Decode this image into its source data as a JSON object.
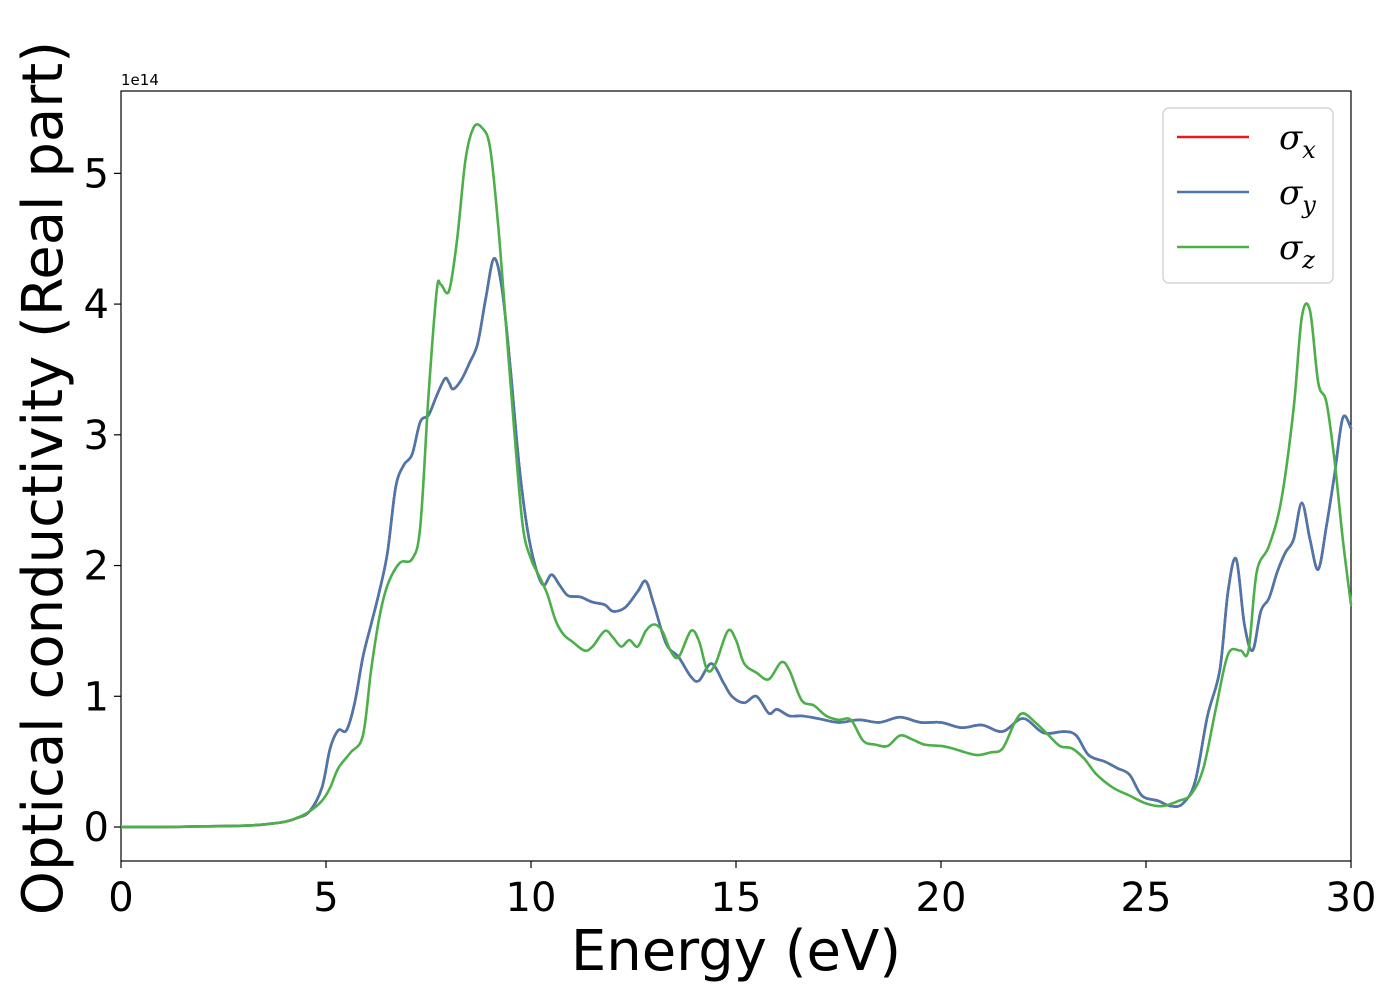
{
  "chart_data": {
    "type": "line",
    "xlabel": "Energy (eV)",
    "ylabel": "Optical conductivity (Real part)",
    "y_offset_label": "1e14",
    "xlim": [
      0,
      30
    ],
    "ylim": [
      -0.26,
      5.63
    ],
    "y_scale": 100000000000000.0,
    "grid": false,
    "legend_position": "top-right",
    "x_ticks": [
      0,
      5,
      10,
      15,
      20,
      25,
      30
    ],
    "x_tick_labels": [
      "0",
      "5",
      "10",
      "15",
      "20",
      "25",
      "30"
    ],
    "y_ticks": [
      0,
      1,
      2,
      3,
      4,
      5
    ],
    "y_tick_labels": [
      "0",
      "1",
      "2",
      "3",
      "4",
      "5"
    ],
    "series": [
      {
        "name": "σx",
        "name_base": "σ",
        "name_sub": "x",
        "color": "#e41a1c",
        "shared_with": "σy",
        "x": [
          0,
          1,
          2,
          3,
          3.5,
          4,
          4.3,
          4.6,
          4.9,
          5.1,
          5.3,
          5.5,
          5.7,
          5.9,
          6.1,
          6.3,
          6.5,
          6.7,
          6.9,
          7.1,
          7.3,
          7.5,
          7.7,
          7.9,
          8.0,
          8.1,
          8.3,
          8.5,
          8.7,
          8.9,
          9.1,
          9.3,
          9.5,
          9.7,
          9.9,
          10.1,
          10.3,
          10.5,
          10.7,
          10.9,
          11.2,
          11.5,
          11.8,
          12.0,
          12.3,
          12.6,
          12.8,
          13.0,
          13.3,
          13.6,
          13.9,
          14.1,
          14.4,
          14.7,
          14.9,
          15.2,
          15.5,
          15.8,
          16.0,
          16.3,
          16.6,
          17.0,
          17.5,
          18.0,
          18.5,
          19.0,
          19.5,
          20.0,
          20.5,
          21.0,
          21.5,
          22.0,
          22.5,
          23.0,
          23.3,
          23.6,
          24.0,
          24.3,
          24.6,
          24.9,
          25.3,
          25.6,
          25.9,
          26.2,
          26.5,
          26.8,
          27.0,
          27.2,
          27.4,
          27.6,
          27.8,
          28.0,
          28.2,
          28.4,
          28.6,
          28.8,
          29.0,
          29.2,
          29.4,
          29.6,
          29.8,
          30.0
        ],
        "y": [
          0,
          0,
          0.005,
          0.01,
          0.02,
          0.04,
          0.07,
          0.12,
          0.3,
          0.6,
          0.74,
          0.74,
          0.95,
          1.3,
          1.55,
          1.8,
          2.1,
          2.6,
          2.77,
          2.85,
          3.1,
          3.15,
          3.3,
          3.43,
          3.4,
          3.35,
          3.42,
          3.55,
          3.7,
          4.05,
          4.35,
          4.1,
          3.5,
          2.8,
          2.3,
          2.0,
          1.85,
          1.93,
          1.85,
          1.77,
          1.76,
          1.72,
          1.7,
          1.65,
          1.68,
          1.8,
          1.88,
          1.7,
          1.4,
          1.3,
          1.15,
          1.12,
          1.25,
          1.1,
          1.0,
          0.95,
          1.0,
          0.87,
          0.9,
          0.85,
          0.85,
          0.83,
          0.8,
          0.82,
          0.8,
          0.84,
          0.8,
          0.8,
          0.76,
          0.78,
          0.73,
          0.83,
          0.72,
          0.73,
          0.7,
          0.55,
          0.5,
          0.45,
          0.4,
          0.24,
          0.2,
          0.16,
          0.18,
          0.35,
          0.85,
          1.2,
          1.8,
          2.05,
          1.55,
          1.35,
          1.65,
          1.75,
          1.95,
          2.1,
          2.2,
          2.48,
          2.2,
          1.97,
          2.3,
          2.7,
          3.13,
          3.05
        ]
      },
      {
        "name": "σy",
        "name_base": "σ",
        "name_sub": "y",
        "color": "#4a78ac",
        "x": [
          0,
          1,
          2,
          3,
          3.5,
          4,
          4.3,
          4.6,
          4.9,
          5.1,
          5.3,
          5.5,
          5.7,
          5.9,
          6.1,
          6.3,
          6.5,
          6.7,
          6.9,
          7.1,
          7.3,
          7.5,
          7.7,
          7.9,
          8.0,
          8.1,
          8.3,
          8.5,
          8.7,
          8.9,
          9.1,
          9.3,
          9.5,
          9.7,
          9.9,
          10.1,
          10.3,
          10.5,
          10.7,
          10.9,
          11.2,
          11.5,
          11.8,
          12.0,
          12.3,
          12.6,
          12.8,
          13.0,
          13.3,
          13.6,
          13.9,
          14.1,
          14.4,
          14.7,
          14.9,
          15.2,
          15.5,
          15.8,
          16.0,
          16.3,
          16.6,
          17.0,
          17.5,
          18.0,
          18.5,
          19.0,
          19.5,
          20.0,
          20.5,
          21.0,
          21.5,
          22.0,
          22.5,
          23.0,
          23.3,
          23.6,
          24.0,
          24.3,
          24.6,
          24.9,
          25.3,
          25.6,
          25.9,
          26.2,
          26.5,
          26.8,
          27.0,
          27.2,
          27.4,
          27.6,
          27.8,
          28.0,
          28.2,
          28.4,
          28.6,
          28.8,
          29.0,
          29.2,
          29.4,
          29.6,
          29.8,
          30.0
        ],
        "y": [
          0,
          0,
          0.005,
          0.01,
          0.02,
          0.04,
          0.07,
          0.12,
          0.3,
          0.6,
          0.74,
          0.74,
          0.95,
          1.3,
          1.55,
          1.8,
          2.1,
          2.6,
          2.77,
          2.85,
          3.1,
          3.15,
          3.3,
          3.43,
          3.4,
          3.35,
          3.42,
          3.55,
          3.7,
          4.05,
          4.35,
          4.1,
          3.5,
          2.8,
          2.3,
          2.0,
          1.85,
          1.93,
          1.85,
          1.77,
          1.76,
          1.72,
          1.7,
          1.65,
          1.68,
          1.8,
          1.88,
          1.7,
          1.4,
          1.3,
          1.15,
          1.12,
          1.25,
          1.1,
          1.0,
          0.95,
          1.0,
          0.87,
          0.9,
          0.85,
          0.85,
          0.83,
          0.8,
          0.82,
          0.8,
          0.84,
          0.8,
          0.8,
          0.76,
          0.78,
          0.73,
          0.83,
          0.72,
          0.73,
          0.7,
          0.55,
          0.5,
          0.45,
          0.4,
          0.24,
          0.2,
          0.16,
          0.18,
          0.35,
          0.85,
          1.2,
          1.8,
          2.05,
          1.55,
          1.35,
          1.65,
          1.75,
          1.95,
          2.1,
          2.2,
          2.48,
          2.2,
          1.97,
          2.3,
          2.7,
          3.13,
          3.05
        ]
      },
      {
        "name": "σz",
        "name_base": "σ",
        "name_sub": "z",
        "color": "#4daf4a",
        "x": [
          0,
          1,
          2,
          3,
          3.5,
          4,
          4.3,
          4.6,
          4.9,
          5.1,
          5.3,
          5.6,
          5.9,
          6.1,
          6.3,
          6.5,
          6.8,
          7.1,
          7.3,
          7.5,
          7.7,
          7.8,
          8.0,
          8.2,
          8.4,
          8.6,
          8.8,
          9.0,
          9.2,
          9.4,
          9.6,
          9.8,
          10.0,
          10.2,
          10.4,
          10.6,
          10.8,
          11.0,
          11.3,
          11.5,
          11.8,
          12.0,
          12.2,
          12.4,
          12.6,
          12.8,
          13.0,
          13.2,
          13.4,
          13.6,
          13.9,
          14.1,
          14.3,
          14.5,
          14.8,
          15.0,
          15.2,
          15.5,
          15.8,
          16.1,
          16.3,
          16.6,
          16.9,
          17.2,
          17.5,
          17.8,
          18.1,
          18.4,
          18.7,
          19.0,
          19.3,
          19.6,
          20.0,
          20.3,
          20.6,
          20.9,
          21.2,
          21.5,
          21.8,
          22.0,
          22.3,
          22.6,
          22.9,
          23.2,
          23.5,
          23.8,
          24.2,
          24.6,
          25.0,
          25.4,
          25.8,
          26.1,
          26.4,
          26.7,
          27.0,
          27.3,
          27.5,
          27.7,
          28.0,
          28.3,
          28.6,
          28.8,
          29.0,
          29.2,
          29.4,
          29.6,
          29.8,
          30.0
        ],
        "y": [
          0,
          0,
          0.005,
          0.01,
          0.02,
          0.04,
          0.07,
          0.12,
          0.2,
          0.3,
          0.45,
          0.57,
          0.7,
          1.2,
          1.6,
          1.85,
          2.02,
          2.05,
          2.3,
          3.3,
          4.1,
          4.15,
          4.1,
          4.5,
          5.1,
          5.35,
          5.35,
          5.2,
          4.6,
          3.8,
          3.0,
          2.3,
          2.05,
          1.92,
          1.78,
          1.58,
          1.47,
          1.42,
          1.35,
          1.38,
          1.5,
          1.45,
          1.38,
          1.43,
          1.38,
          1.5,
          1.55,
          1.5,
          1.35,
          1.3,
          1.5,
          1.42,
          1.2,
          1.25,
          1.5,
          1.43,
          1.25,
          1.18,
          1.13,
          1.26,
          1.2,
          0.97,
          0.93,
          0.85,
          0.82,
          0.82,
          0.66,
          0.63,
          0.62,
          0.7,
          0.67,
          0.63,
          0.62,
          0.6,
          0.57,
          0.55,
          0.57,
          0.6,
          0.8,
          0.87,
          0.8,
          0.71,
          0.62,
          0.6,
          0.52,
          0.4,
          0.3,
          0.24,
          0.18,
          0.16,
          0.2,
          0.25,
          0.45,
          0.9,
          1.32,
          1.35,
          1.35,
          1.95,
          2.15,
          2.5,
          3.2,
          3.9,
          3.95,
          3.4,
          3.25,
          2.8,
          2.2,
          1.7
        ]
      }
    ]
  }
}
